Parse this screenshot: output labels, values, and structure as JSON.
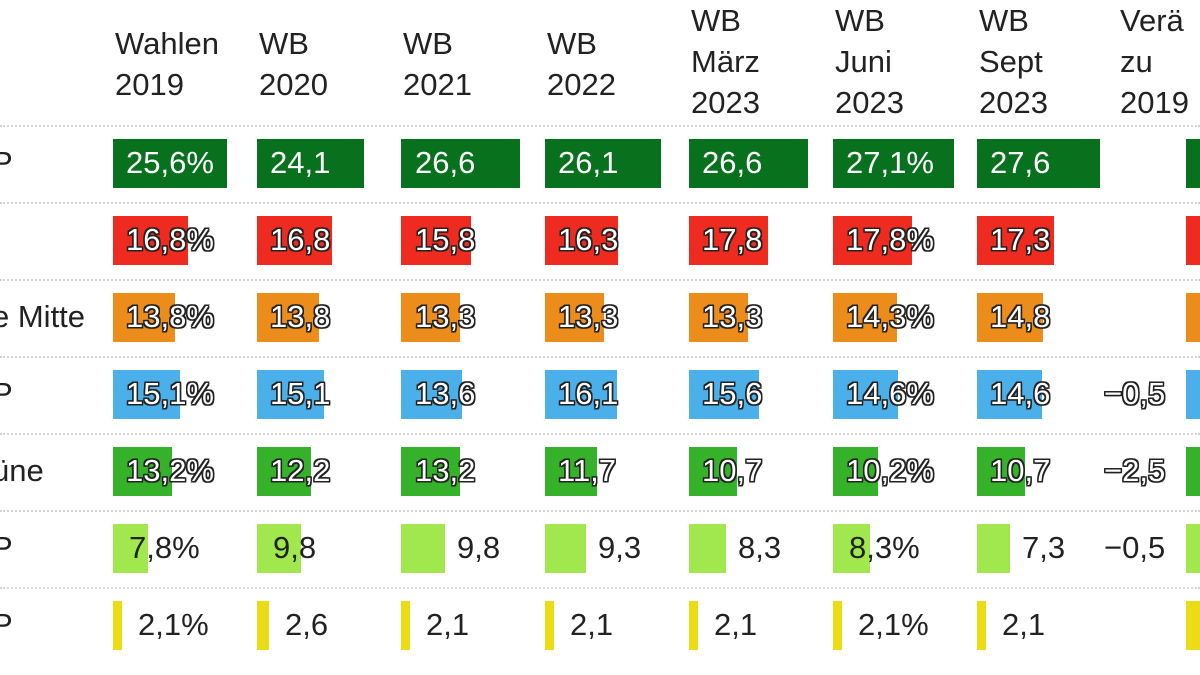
{
  "chart_data": {
    "type": "bar",
    "columns": [
      {
        "lines": [
          "Wahlen",
          "2019"
        ]
      },
      {
        "lines": [
          "WB",
          "2020"
        ]
      },
      {
        "lines": [
          "WB",
          "2021"
        ]
      },
      {
        "lines": [
          "WB",
          "2022"
        ]
      },
      {
        "lines": [
          "WB",
          "März",
          "2023"
        ]
      },
      {
        "lines": [
          "WB",
          "Juni",
          "2023"
        ]
      },
      {
        "lines": [
          "WB",
          "Sept",
          "2023"
        ]
      },
      {
        "lines": [
          "Verä",
          "zu",
          "2019"
        ]
      }
    ],
    "series": [
      {
        "name": "P",
        "color": "#08711e",
        "values": [
          25.6,
          24.1,
          26.6,
          26.1,
          26.6,
          27.1,
          27.6
        ],
        "labels": [
          "25,6%",
          "24,1",
          "26,6",
          "26,1",
          "26,6",
          "27,1%",
          "27,6"
        ],
        "change": {
          "value": null,
          "label": ""
        }
      },
      {
        "name": "",
        "color": "#ef2b1f",
        "values": [
          16.8,
          16.8,
          15.8,
          16.3,
          17.8,
          17.8,
          17.3
        ],
        "labels": [
          "16,8%",
          "16,8",
          "15,8",
          "16,3",
          "17,8",
          "17,8%",
          "17,3"
        ],
        "change": {
          "value": null,
          "label": ""
        }
      },
      {
        "name": "e Mitte",
        "color": "#ec8c1a",
        "values": [
          13.8,
          13.8,
          13.3,
          13.3,
          13.3,
          14.3,
          14.8
        ],
        "labels": [
          "13,8%",
          "13,8",
          "13,3",
          "13,3",
          "13,3",
          "14,3%",
          "14,8"
        ],
        "change": {
          "value": null,
          "label": ""
        }
      },
      {
        "name": "P",
        "color": "#4bafea",
        "values": [
          15.1,
          15.1,
          13.6,
          16.1,
          15.6,
          14.6,
          14.6
        ],
        "labels": [
          "15,1%",
          "15,1",
          "13,6",
          "16,1",
          "15,6",
          "14,6%",
          "14,6"
        ],
        "change": {
          "value": -0.5,
          "label": "−0,5"
        }
      },
      {
        "name": "üne",
        "color": "#35b22a",
        "values": [
          13.2,
          12.2,
          13.2,
          11.7,
          10.7,
          10.2,
          10.7
        ],
        "labels": [
          "13,2%",
          "12,2",
          "13,2",
          "11,7",
          "10,7",
          "10,2%",
          "10,7"
        ],
        "change": {
          "value": -2.5,
          "label": "−2,5"
        }
      },
      {
        "name": "P",
        "color": "#a0e84e",
        "values": [
          7.8,
          9.8,
          9.8,
          9.3,
          8.3,
          8.3,
          7.3
        ],
        "labels": [
          "7,8%",
          "9,8",
          "9,8",
          "9,3",
          "8,3",
          "8,3%",
          "7,3"
        ],
        "change": {
          "value": -0.5,
          "label": "−0,5"
        }
      },
      {
        "name": "P",
        "color": "#ecdc15",
        "values": [
          2.1,
          2.6,
          2.1,
          2.1,
          2.1,
          2.1,
          2.1
        ],
        "labels": [
          "2,1%",
          "2,6",
          "2,1",
          "2,1",
          "2,1",
          "2,1%",
          "2,1"
        ],
        "change": {
          "value": null,
          "label": ""
        }
      }
    ],
    "value_range": [
      0,
      30
    ],
    "grid": false,
    "legend": "none"
  }
}
